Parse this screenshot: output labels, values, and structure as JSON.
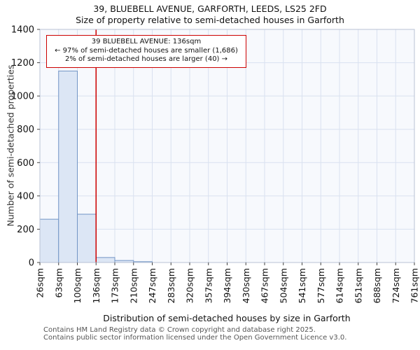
{
  "title": {
    "line1": "39, BLUEBELL AVENUE, GARFORTH, LEEDS, LS25 2FD",
    "line2": "Size of property relative to semi-detached houses in Garforth"
  },
  "annotation": {
    "line1": "39 BLUEBELL AVENUE: 136sqm",
    "line2": "← 97% of semi-detached houses are smaller (1,686)",
    "line3": "2% of semi-detached houses are larger (40) →"
  },
  "footer": {
    "line1": "Contains HM Land Registry data © Crown copyright and database right 2025.",
    "line2": "Contains public sector information licensed under the Open Government Licence v3.0."
  },
  "chart_data": {
    "type": "bar",
    "title": "39, BLUEBELL AVENUE, GARFORTH, LEEDS, LS25 2FD — Size of property relative to semi-detached houses in Garforth",
    "xlabel": "Distribution of semi-detached houses by size in Garforth",
    "ylabel": "Number of semi-detached properties",
    "ylim": [
      0,
      1400
    ],
    "yticks": [
      0,
      200,
      400,
      600,
      800,
      1000,
      1200,
      1400
    ],
    "tick_labels": [
      "26sqm",
      "63sqm",
      "100sqm",
      "136sqm",
      "173sqm",
      "210sqm",
      "247sqm",
      "283sqm",
      "320sqm",
      "357sqm",
      "394sqm",
      "430sqm",
      "467sqm",
      "504sqm",
      "541sqm",
      "577sqm",
      "614sqm",
      "651sqm",
      "688sqm",
      "724sqm",
      "761sqm"
    ],
    "values": [
      260,
      1150,
      290,
      30,
      12,
      5,
      0,
      0,
      0,
      0,
      0,
      0,
      0,
      0,
      0,
      0,
      0,
      0,
      0,
      0
    ],
    "marker": {
      "label": "136sqm",
      "tick_index": 3,
      "value_sqm": 136
    },
    "grid": true,
    "legend": false,
    "colors": {
      "bar_fill": "#dce6f5",
      "bar_border": "#7295c5",
      "marker_line": "#cc0000",
      "grid": "#d9e1f0",
      "plot_bg": "#f7f9fd",
      "frame": "#b8c2d4",
      "tick_text": "#111111"
    }
  }
}
